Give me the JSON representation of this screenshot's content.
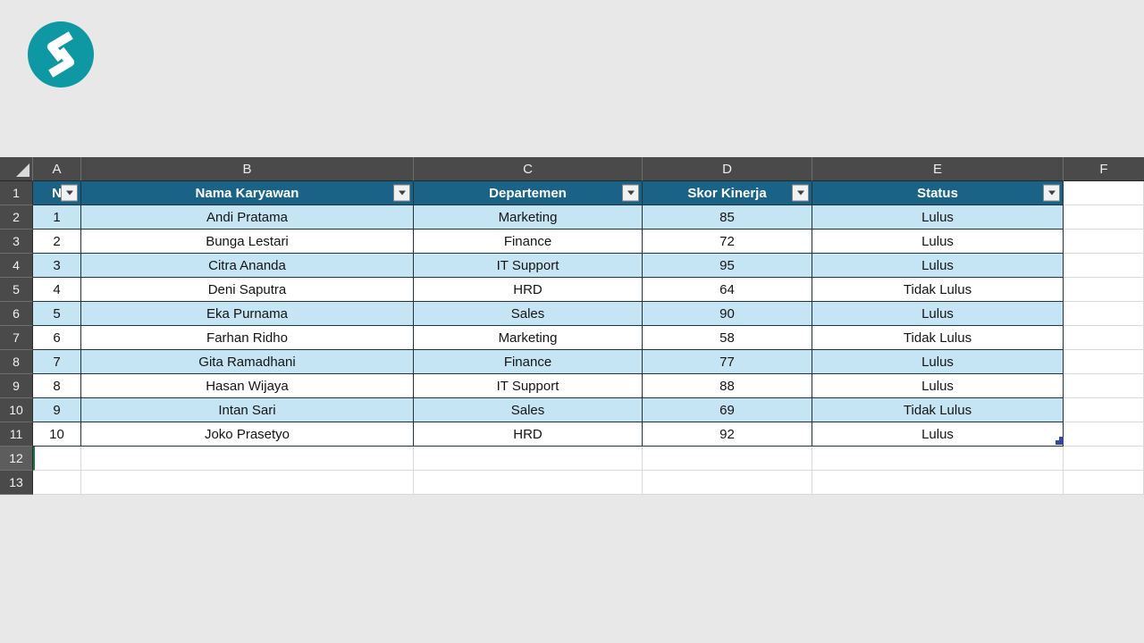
{
  "page": {
    "background": "#E8E8E9"
  },
  "logo": {
    "icon": "s-ribbon-logo-icon",
    "circle_color": "#0D98A3",
    "glyph_color": "#FFFFFF"
  },
  "sheet": {
    "column_letters": [
      "A",
      "B",
      "C",
      "D",
      "E",
      "F"
    ],
    "row_numbers": [
      "1",
      "2",
      "3",
      "4",
      "5",
      "6",
      "7",
      "8",
      "9",
      "10",
      "11",
      "12",
      "13"
    ],
    "active_cell": {
      "col": "A",
      "row": "12"
    },
    "colors": {
      "table_header_bg": "#1A6386",
      "band_row_bg": "#C6E5F4",
      "plain_row_bg": "#FFFFFF",
      "chrome_bg": "#4A4A4A",
      "active_cell_border": "#107C41",
      "resize_handle": "#33479E"
    },
    "table": {
      "headers": [
        {
          "key": "no",
          "label": "N"
        },
        {
          "key": "nama",
          "label": "Nama Karyawan"
        },
        {
          "key": "departemen",
          "label": "Departemen"
        },
        {
          "key": "skor",
          "label": "Skor Kinerja"
        },
        {
          "key": "status",
          "label": "Status"
        }
      ],
      "rows": [
        {
          "no": "1",
          "nama": "Andi Pratama",
          "departemen": "Marketing",
          "skor": "85",
          "status": "Lulus"
        },
        {
          "no": "2",
          "nama": "Bunga Lestari",
          "departemen": "Finance",
          "skor": "72",
          "status": "Lulus"
        },
        {
          "no": "3",
          "nama": "Citra Ananda",
          "departemen": "IT Support",
          "skor": "95",
          "status": "Lulus"
        },
        {
          "no": "4",
          "nama": "Deni Saputra",
          "departemen": "HRD",
          "skor": "64",
          "status": "Tidak Lulus"
        },
        {
          "no": "5",
          "nama": "Eka Purnama",
          "departemen": "Sales",
          "skor": "90",
          "status": "Lulus"
        },
        {
          "no": "6",
          "nama": "Farhan Ridho",
          "departemen": "Marketing",
          "skor": "58",
          "status": "Tidak Lulus"
        },
        {
          "no": "7",
          "nama": "Gita Ramadhani",
          "departemen": "Finance",
          "skor": "77",
          "status": "Lulus"
        },
        {
          "no": "8",
          "nama": "Hasan Wijaya",
          "departemen": "IT Support",
          "skor": "88",
          "status": "Lulus"
        },
        {
          "no": "9",
          "nama": "Intan Sari",
          "departemen": "Sales",
          "skor": "69",
          "status": "Tidak Lulus"
        },
        {
          "no": "10",
          "nama": "Joko Prasetyo",
          "departemen": "HRD",
          "skor": "92",
          "status": "Lulus"
        }
      ]
    }
  }
}
